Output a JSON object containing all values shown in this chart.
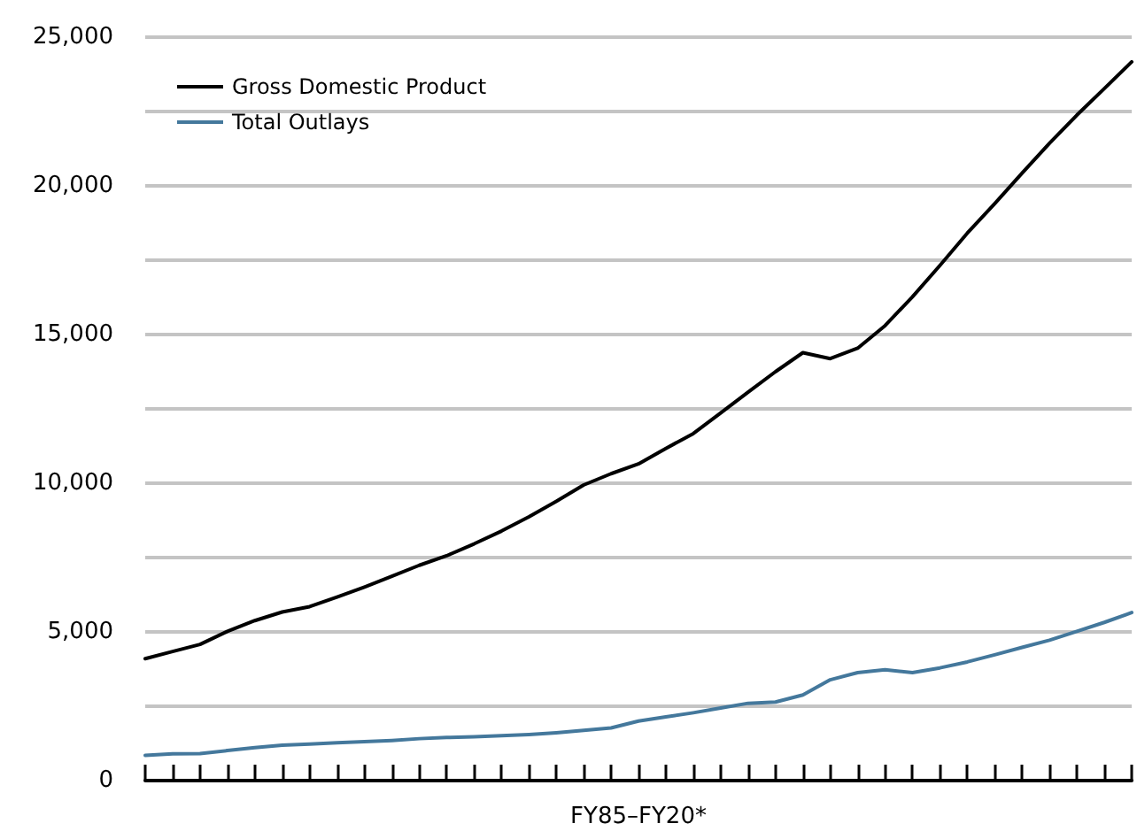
{
  "chart_data": {
    "type": "line",
    "xlabel": "FY85–FY20*",
    "categories": [
      null,
      null,
      null,
      null,
      null,
      null,
      null,
      null,
      null,
      null,
      null,
      null,
      null,
      null,
      null,
      null,
      null,
      null,
      null,
      null,
      null,
      null,
      null,
      null,
      null,
      null,
      null,
      null,
      null,
      null,
      null,
      null,
      null,
      null,
      null,
      null,
      null
    ],
    "series": [
      {
        "name": "Gross Domestic Product",
        "color": "#000000",
        "values": [
          4100,
          4340,
          4580,
          5020,
          5380,
          5670,
          5850,
          6170,
          6510,
          6870,
          7240,
          7560,
          7960,
          8390,
          8870,
          9390,
          9940,
          10320,
          10650,
          11170,
          11670,
          12360,
          13060,
          13750,
          14390,
          14190,
          14540,
          15300,
          16270,
          17320,
          18410,
          19400,
          20430,
          21430,
          22380,
          23270,
          24170
        ]
      },
      {
        "name": "Total Outlays",
        "color": "#44789c",
        "values": [
          850,
          900,
          910,
          1010,
          1110,
          1190,
          1230,
          1270,
          1310,
          1350,
          1410,
          1450,
          1470,
          1510,
          1550,
          1610,
          1690,
          1770,
          2000,
          2140,
          2280,
          2440,
          2600,
          2640,
          2880,
          3390,
          3630,
          3730,
          3630,
          3790,
          3990,
          4230,
          4480,
          4720,
          5020,
          5320,
          5650
        ]
      }
    ],
    "ylim": [
      0,
      25000
    ],
    "yticks": [
      0,
      {
        "value": 2500,
        "label": null
      },
      {
        "value": 5000,
        "label": "5,000"
      },
      {
        "value": 7500,
        "label": null
      },
      {
        "value": 10000,
        "label": "10,000"
      },
      {
        "value": 12500,
        "label": null
      },
      {
        "value": 15000,
        "label": "15,000"
      },
      {
        "value": 17500,
        "label": null
      },
      {
        "value": 20000,
        "label": "20,000"
      },
      {
        "value": 22500,
        "label": null
      },
      {
        "value": 25000,
        "label": "25,000"
      }
    ],
    "grid": "y",
    "legend": "top left",
    "marker": "none",
    "line_style": "solid"
  }
}
